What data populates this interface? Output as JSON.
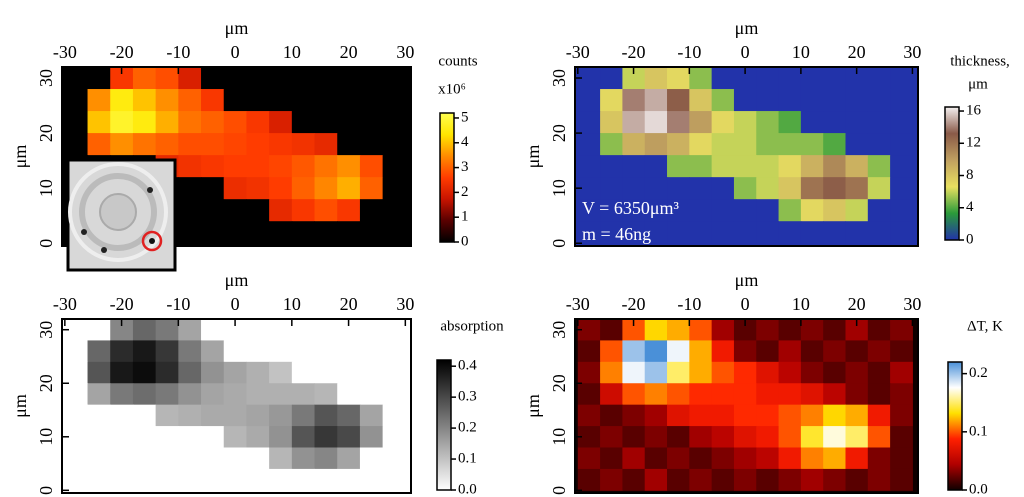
{
  "chart_data": [
    {
      "type": "heatmap",
      "title": "μm",
      "ylabel": "μm",
      "colorbar_label": [
        "counts",
        "x10⁶"
      ],
      "xlim": [
        -30.5,
        31
      ],
      "ylim": [
        -0.5,
        32
      ],
      "xticks": [
        -30,
        -20,
        -10,
        0,
        10,
        20,
        30
      ],
      "yticks": [
        0,
        10,
        20,
        30
      ],
      "clim": [
        0,
        5.2
      ],
      "cticks": [
        0,
        1,
        2,
        3,
        4,
        5
      ],
      "colormap": [
        "#000000",
        "#5a0000",
        "#c81400",
        "#ff3c00",
        "#ff8c00",
        "#ffe600",
        "#ffff50"
      ],
      "x": [
        -28,
        -24,
        -20,
        -16,
        -12,
        -8,
        -4,
        0,
        4,
        8,
        12,
        16,
        20,
        24,
        28
      ],
      "y": [
        30,
        26,
        22,
        18,
        14,
        10,
        6,
        2
      ],
      "values": [
        [
          0,
          0,
          2.5,
          3,
          2.8,
          2,
          0,
          0,
          0,
          0,
          0,
          0,
          0,
          0,
          0
        ],
        [
          0,
          3.5,
          4.5,
          4,
          3.5,
          3,
          2.5,
          0,
          0,
          0,
          0,
          0,
          0,
          0,
          0
        ],
        [
          0,
          4,
          4.8,
          4.5,
          3.8,
          3.2,
          3,
          2.8,
          2.5,
          2,
          0,
          0,
          0,
          0,
          0
        ],
        [
          0,
          3,
          3.5,
          3.2,
          3,
          2.8,
          2.8,
          2.7,
          2.6,
          2.5,
          2.4,
          2.2,
          0,
          0,
          0
        ],
        [
          0,
          0,
          0,
          0,
          2.2,
          2.4,
          2.5,
          2.6,
          2.6,
          2.7,
          2.9,
          3.2,
          3.5,
          2.8,
          0
        ],
        [
          0,
          0,
          0,
          0,
          0,
          0,
          0,
          2.3,
          2.4,
          2.6,
          3,
          3.4,
          3.8,
          3,
          0
        ],
        [
          0,
          0,
          0,
          0,
          0,
          0,
          0,
          0,
          0,
          2.2,
          2.5,
          2.8,
          2.5,
          0,
          0
        ],
        [
          0,
          0,
          0,
          0,
          0,
          0,
          0,
          0,
          0,
          0,
          0,
          0,
          0,
          0,
          0
        ]
      ]
    },
    {
      "type": "heatmap",
      "title": "μm",
      "ylabel": "μm",
      "colorbar_label": [
        "thickness,",
        "μm"
      ],
      "annotations": [
        "V = 6350μm³",
        "m = 46ng"
      ],
      "xlim": [
        -30.5,
        31
      ],
      "ylim": [
        -0.5,
        32
      ],
      "xticks": [
        -30,
        -20,
        -10,
        0,
        10,
        20,
        30
      ],
      "yticks": [
        0,
        10,
        20,
        30
      ],
      "clim": [
        0,
        16.5
      ],
      "cticks": [
        0,
        4,
        8,
        12,
        16
      ],
      "colormap": [
        "#2233aa",
        "#2a9a3a",
        "#e8e060",
        "#c0a060",
        "#8a5a48",
        "#f4f0f0"
      ],
      "x": [
        -28,
        -24,
        -20,
        -16,
        -12,
        -8,
        -4,
        0,
        4,
        8,
        12,
        16,
        20,
        24,
        28
      ],
      "y": [
        30,
        26,
        22,
        18,
        14,
        10,
        6,
        2
      ],
      "values": [
        [
          0,
          0,
          6,
          8,
          7,
          5,
          0,
          0,
          0,
          0,
          0,
          0,
          0,
          0,
          0
        ],
        [
          0,
          7,
          14,
          15,
          13,
          8,
          5,
          0,
          0,
          0,
          0,
          0,
          0,
          0,
          0
        ],
        [
          0,
          8,
          15,
          16,
          14,
          10,
          7,
          6,
          5,
          4,
          0,
          0,
          0,
          0,
          0
        ],
        [
          0,
          5,
          9,
          10,
          9,
          7,
          6,
          6,
          5,
          5,
          5,
          4,
          0,
          0,
          0
        ],
        [
          0,
          0,
          0,
          0,
          5,
          5,
          6,
          6,
          6,
          7,
          9,
          11,
          9,
          5,
          0
        ],
        [
          0,
          0,
          0,
          0,
          0,
          0,
          0,
          5,
          6,
          8,
          12,
          13,
          12,
          6,
          0
        ],
        [
          0,
          0,
          0,
          0,
          0,
          0,
          0,
          0,
          0,
          5,
          7,
          8,
          6,
          0,
          0
        ],
        [
          0,
          0,
          0,
          0,
          0,
          0,
          0,
          0,
          0,
          0,
          0,
          0,
          0,
          0,
          0
        ]
      ]
    },
    {
      "type": "heatmap",
      "title": "μm",
      "ylabel": "μm",
      "colorbar_label": [
        "absorption"
      ],
      "xlim": [
        -30.5,
        31
      ],
      "ylim": [
        -0.5,
        32
      ],
      "xticks": [
        -30,
        -20,
        -10,
        0,
        10,
        20,
        30
      ],
      "yticks": [
        0,
        10,
        20,
        30
      ],
      "clim": [
        0,
        0.42
      ],
      "cticks": [
        {
          "value": 0,
          "label": "0.0"
        },
        0.1,
        0.2,
        0.3,
        0.4
      ],
      "colormap": [
        "#ffffff",
        "#000000"
      ],
      "x": [
        -28,
        -24,
        -20,
        -16,
        -12,
        -8,
        -4,
        0,
        4,
        8,
        12,
        16,
        20,
        24,
        28
      ],
      "y": [
        30,
        26,
        22,
        18,
        14,
        10,
        6,
        2
      ],
      "values": [
        [
          0,
          0,
          0.2,
          0.25,
          0.22,
          0.15,
          0,
          0,
          0,
          0,
          0,
          0,
          0,
          0,
          0
        ],
        [
          0,
          0.25,
          0.35,
          0.38,
          0.33,
          0.22,
          0.15,
          0,
          0,
          0,
          0,
          0,
          0,
          0,
          0
        ],
        [
          0,
          0.28,
          0.38,
          0.4,
          0.35,
          0.25,
          0.18,
          0.15,
          0.13,
          0.1,
          0,
          0,
          0,
          0,
          0
        ],
        [
          0,
          0.15,
          0.22,
          0.24,
          0.22,
          0.18,
          0.15,
          0.14,
          0.13,
          0.13,
          0.13,
          0.12,
          0,
          0,
          0
        ],
        [
          0,
          0,
          0,
          0,
          0.12,
          0.13,
          0.14,
          0.14,
          0.15,
          0.17,
          0.22,
          0.28,
          0.25,
          0.15,
          0
        ],
        [
          0,
          0,
          0,
          0,
          0,
          0,
          0,
          0.12,
          0.14,
          0.18,
          0.28,
          0.33,
          0.3,
          0.18,
          0
        ],
        [
          0,
          0,
          0,
          0,
          0,
          0,
          0,
          0,
          0,
          0.12,
          0.18,
          0.2,
          0.15,
          0,
          0
        ],
        [
          0,
          0,
          0,
          0,
          0,
          0,
          0,
          0,
          0,
          0,
          0,
          0,
          0,
          0,
          0
        ]
      ]
    },
    {
      "type": "heatmap",
      "title": "μm",
      "ylabel": "μm",
      "colorbar_label": [
        "ΔT, K"
      ],
      "xlim": [
        -30.5,
        31
      ],
      "ylim": [
        -0.5,
        32
      ],
      "xticks": [
        -30,
        -20,
        -10,
        0,
        10,
        20,
        30
      ],
      "yticks": [
        0,
        10,
        20,
        30
      ],
      "clim": [
        0,
        0.22
      ],
      "cticks": [
        {
          "value": 0,
          "label": "0.0"
        },
        0.1,
        0.2
      ],
      "colormap": [
        "#100000",
        "#b00000",
        "#ff2000",
        "#ffe000",
        "#ffffff",
        "#4a90d8"
      ],
      "x": [
        -28,
        -24,
        -20,
        -16,
        -12,
        -8,
        -4,
        0,
        4,
        8,
        12,
        16,
        20,
        24,
        28
      ],
      "y": [
        30,
        26,
        22,
        18,
        14,
        10,
        6,
        2
      ],
      "values": [
        [
          0.03,
          0.02,
          0.1,
          0.13,
          0.12,
          0.1,
          0.04,
          0.02,
          0.03,
          0.02,
          0.03,
          0.02,
          0.04,
          0.02,
          0.03
        ],
        [
          0.02,
          0.1,
          0.2,
          0.22,
          0.18,
          0.12,
          0.08,
          0.03,
          0.02,
          0.04,
          0.02,
          0.03,
          0.02,
          0.03,
          0.02
        ],
        [
          0.03,
          0.11,
          0.18,
          0.2,
          0.15,
          0.12,
          0.1,
          0.09,
          0.07,
          0.05,
          0.03,
          0.02,
          0.03,
          0.02,
          0.04
        ],
        [
          0.02,
          0.06,
          0.1,
          0.11,
          0.1,
          0.09,
          0.09,
          0.09,
          0.08,
          0.08,
          0.07,
          0.05,
          0.03,
          0.02,
          0.03
        ],
        [
          0.03,
          0.02,
          0.03,
          0.04,
          0.07,
          0.08,
          0.08,
          0.09,
          0.09,
          0.1,
          0.11,
          0.13,
          0.12,
          0.08,
          0.03
        ],
        [
          0.02,
          0.03,
          0.02,
          0.03,
          0.02,
          0.04,
          0.05,
          0.07,
          0.08,
          0.1,
          0.14,
          0.17,
          0.15,
          0.1,
          0.02
        ],
        [
          0.03,
          0.02,
          0.04,
          0.02,
          0.03,
          0.02,
          0.03,
          0.04,
          0.05,
          0.08,
          0.11,
          0.12,
          0.08,
          0.03,
          0.02
        ],
        [
          0.02,
          0.03,
          0.02,
          0.04,
          0.02,
          0.03,
          0.02,
          0.03,
          0.02,
          0.03,
          0.04,
          0.03,
          0.02,
          0.03,
          0.02
        ]
      ]
    }
  ]
}
